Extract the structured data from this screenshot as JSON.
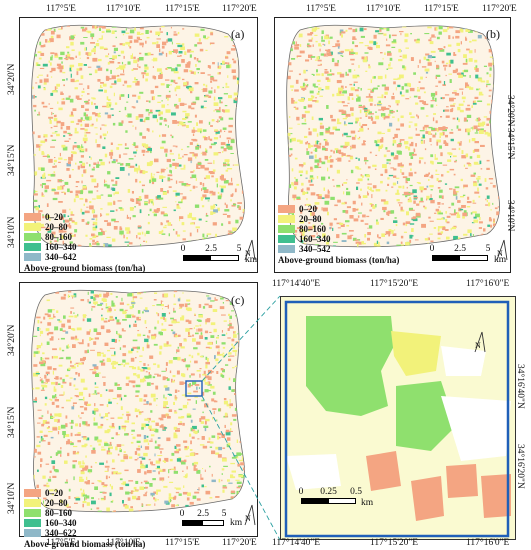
{
  "lon_labels_main": [
    "117°5'E",
    "117°10'E",
    "117°15'E",
    "117°20'E"
  ],
  "lat_labels_main": [
    "34°20'N",
    "34°15'N",
    "34°10'N"
  ],
  "lon_labels_inset": [
    "117°14'40\"E",
    "117°15'20\"E",
    "117°16'0\"E"
  ],
  "lat_labels_inset": [
    "34°16'40\"N",
    "34°16'20\"N"
  ],
  "panels": [
    {
      "letter": "(a)",
      "legend": [
        "0–20",
        "20–80",
        "80–160",
        "160–340",
        "340–642"
      ]
    },
    {
      "letter": "(b)",
      "legend": [
        "0–20",
        "20–80",
        "80–160",
        "160–340",
        "340–542"
      ]
    },
    {
      "letter": "(c)",
      "legend": [
        "0–20",
        "20–80",
        "80–160",
        "160–340",
        "340–622"
      ]
    }
  ],
  "legend_title": "Above-ground biomass (ton/ha)",
  "legend_colors": [
    "#f4a582",
    "#f2f27a",
    "#8fe06e",
    "#3fbf8f",
    "#8fb8c8"
  ],
  "scale_main": {
    "ticks": [
      "0",
      "2.5",
      "5"
    ],
    "unit": "km"
  },
  "scale_inset": {
    "ticks": [
      "0",
      "0.25",
      "0.5"
    ],
    "unit": "km"
  },
  "north_label": "N",
  "colors": {
    "frame": "#1f5fb8",
    "leader": "#2a9fa0"
  }
}
